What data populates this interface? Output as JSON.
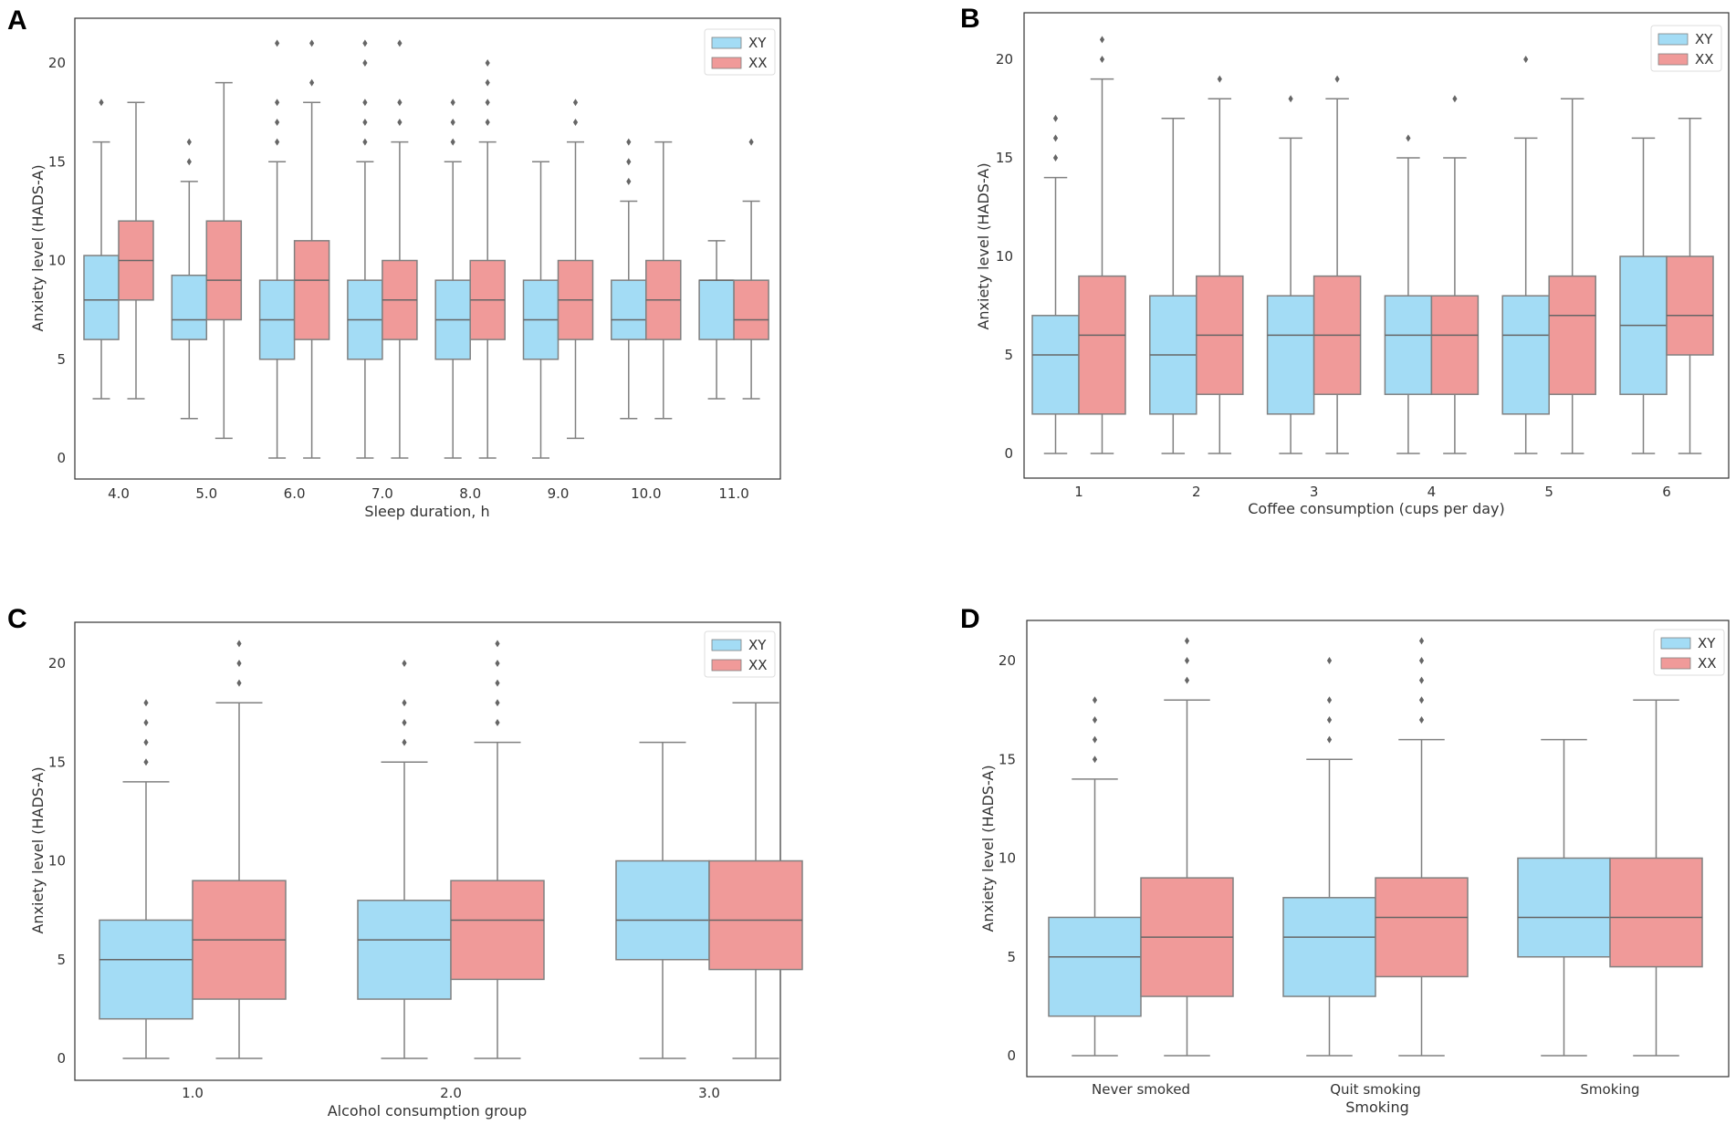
{
  "colors": {
    "XY": "#a3dcf5",
    "XX": "#f09a99",
    "line": "#808080"
  },
  "chart_data": [
    {
      "panel": "A",
      "type": "box",
      "xlabel": "Sleep duration, h",
      "ylabel": "Anxiety level (HADS-A)",
      "ylim": [
        -1,
        22
      ],
      "yticks": [
        0,
        5,
        10,
        15,
        20
      ],
      "legend": [
        "XY",
        "XX"
      ],
      "legend_position": "top-right",
      "categories": [
        "4.0",
        "5.0",
        "6.0",
        "7.0",
        "8.0",
        "9.0",
        "10.0",
        "11.0"
      ],
      "series": [
        {
          "name": "XY",
          "boxes": [
            {
              "wlo": 3,
              "q1": 6,
              "med": 8,
              "q3": 10.25,
              "whi": 16,
              "out": [
                18
              ]
            },
            {
              "wlo": 2,
              "q1": 6,
              "med": 7,
              "q3": 9.25,
              "whi": 14,
              "out": [
                15,
                16
              ]
            },
            {
              "wlo": 0,
              "q1": 5,
              "med": 7,
              "q3": 9,
              "whi": 15,
              "out": [
                16,
                17,
                18,
                21
              ]
            },
            {
              "wlo": 0,
              "q1": 5,
              "med": 7,
              "q3": 9,
              "whi": 15,
              "out": [
                16,
                17,
                18,
                20,
                21
              ]
            },
            {
              "wlo": 0,
              "q1": 5,
              "med": 7,
              "q3": 9,
              "whi": 15,
              "out": [
                16,
                17,
                18
              ]
            },
            {
              "wlo": 0,
              "q1": 5,
              "med": 7,
              "q3": 9,
              "whi": 15,
              "out": []
            },
            {
              "wlo": 2,
              "q1": 6,
              "med": 7,
              "q3": 9,
              "whi": 13,
              "out": [
                14,
                15,
                16
              ]
            },
            {
              "wlo": 3,
              "q1": 6,
              "med": 9,
              "q3": 9,
              "whi": 11,
              "out": []
            }
          ]
        },
        {
          "name": "XX",
          "boxes": [
            {
              "wlo": 3,
              "q1": 8,
              "med": 10,
              "q3": 12,
              "whi": 18,
              "out": []
            },
            {
              "wlo": 1,
              "q1": 7,
              "med": 9,
              "q3": 12,
              "whi": 19,
              "out": []
            },
            {
              "wlo": 0,
              "q1": 6,
              "med": 9,
              "q3": 11,
              "whi": 18,
              "out": [
                19,
                21
              ]
            },
            {
              "wlo": 0,
              "q1": 6,
              "med": 8,
              "q3": 10,
              "whi": 16,
              "out": [
                17,
                18,
                21
              ]
            },
            {
              "wlo": 0,
              "q1": 6,
              "med": 8,
              "q3": 10,
              "whi": 16,
              "out": [
                17,
                18,
                19,
                20
              ]
            },
            {
              "wlo": 1,
              "q1": 6,
              "med": 8,
              "q3": 10,
              "whi": 16,
              "out": [
                17,
                18
              ]
            },
            {
              "wlo": 2,
              "q1": 6,
              "med": 8,
              "q3": 10,
              "whi": 16,
              "out": []
            },
            {
              "wlo": 3,
              "q1": 6,
              "med": 7,
              "q3": 9,
              "whi": 13,
              "out": [
                16
              ]
            }
          ]
        }
      ]
    },
    {
      "panel": "B",
      "type": "box",
      "xlabel": "Coffee consumption (cups per day)",
      "ylabel": "Anxiety level (HADS-A)",
      "ylim": [
        -1,
        22
      ],
      "yticks": [
        0,
        5,
        10,
        15,
        20
      ],
      "legend": [
        "XY",
        "XX"
      ],
      "legend_position": "top-right",
      "categories": [
        "1",
        "2",
        "3",
        "4",
        "5",
        "6"
      ],
      "series": [
        {
          "name": "XY",
          "boxes": [
            {
              "wlo": 0,
              "q1": 2,
              "med": 5,
              "q3": 7,
              "whi": 14,
              "out": [
                15,
                16,
                17
              ]
            },
            {
              "wlo": 0,
              "q1": 2,
              "med": 5,
              "q3": 8,
              "whi": 17,
              "out": []
            },
            {
              "wlo": 0,
              "q1": 2,
              "med": 6,
              "q3": 8,
              "whi": 16,
              "out": [
                18
              ]
            },
            {
              "wlo": 0,
              "q1": 3,
              "med": 6,
              "q3": 8,
              "whi": 15,
              "out": [
                16
              ]
            },
            {
              "wlo": 0,
              "q1": 2,
              "med": 6,
              "q3": 8,
              "whi": 16,
              "out": [
                20
              ]
            },
            {
              "wlo": 0,
              "q1": 3,
              "med": 6.5,
              "q3": 10,
              "whi": 16,
              "out": []
            }
          ]
        },
        {
          "name": "XX",
          "boxes": [
            {
              "wlo": 0,
              "q1": 2,
              "med": 6,
              "q3": 9,
              "whi": 19,
              "out": [
                20,
                21
              ]
            },
            {
              "wlo": 0,
              "q1": 3,
              "med": 6,
              "q3": 9,
              "whi": 18,
              "out": [
                19
              ]
            },
            {
              "wlo": 0,
              "q1": 3,
              "med": 6,
              "q3": 9,
              "whi": 18,
              "out": [
                19
              ]
            },
            {
              "wlo": 0,
              "q1": 3,
              "med": 6,
              "q3": 8,
              "whi": 15,
              "out": [
                18
              ]
            },
            {
              "wlo": 0,
              "q1": 3,
              "med": 7,
              "q3": 9,
              "whi": 18,
              "out": []
            },
            {
              "wlo": 0,
              "q1": 5,
              "med": 7,
              "q3": 10,
              "whi": 17,
              "out": []
            }
          ]
        }
      ]
    },
    {
      "panel": "C",
      "type": "box",
      "xlabel": "Alcohol consumption group",
      "ylabel": "Anxiety level (HADS-A)",
      "ylim": [
        -1,
        22
      ],
      "yticks": [
        0,
        5,
        10,
        15,
        20
      ],
      "legend": [
        "XY",
        "XX"
      ],
      "legend_position": "top-right",
      "categories": [
        "1.0",
        "2.0",
        "3.0"
      ],
      "series": [
        {
          "name": "XY",
          "boxes": [
            {
              "wlo": 0,
              "q1": 2,
              "med": 5,
              "q3": 7,
              "whi": 14,
              "out": [
                15,
                16,
                17,
                18
              ]
            },
            {
              "wlo": 0,
              "q1": 3,
              "med": 6,
              "q3": 8,
              "whi": 15,
              "out": [
                16,
                17,
                18,
                20
              ]
            },
            {
              "wlo": 0,
              "q1": 5,
              "med": 7,
              "q3": 10,
              "whi": 16,
              "out": []
            }
          ]
        },
        {
          "name": "XX",
          "boxes": [
            {
              "wlo": 0,
              "q1": 3,
              "med": 6,
              "q3": 9,
              "whi": 18,
              "out": [
                19,
                20,
                21
              ]
            },
            {
              "wlo": 0,
              "q1": 4,
              "med": 7,
              "q3": 9,
              "whi": 16,
              "out": [
                17,
                18,
                19,
                20,
                21
              ]
            },
            {
              "wlo": 0,
              "q1": 4.5,
              "med": 7,
              "q3": 10,
              "whi": 18,
              "out": []
            }
          ]
        }
      ]
    },
    {
      "panel": "D",
      "type": "box",
      "xlabel": "Smoking",
      "ylabel": "Anxiety level (HADS-A)",
      "ylim": [
        -1,
        22
      ],
      "yticks": [
        0,
        5,
        10,
        15,
        20
      ],
      "legend": [
        "XY",
        "XX"
      ],
      "legend_position": "top-right",
      "categories": [
        "Never smoked",
        "Quit smoking",
        "Smoking"
      ],
      "series": [
        {
          "name": "XY",
          "boxes": [
            {
              "wlo": 0,
              "q1": 2,
              "med": 5,
              "q3": 7,
              "whi": 14,
              "out": [
                15,
                16,
                17,
                18
              ]
            },
            {
              "wlo": 0,
              "q1": 3,
              "med": 6,
              "q3": 8,
              "whi": 15,
              "out": [
                16,
                17,
                18,
                20
              ]
            },
            {
              "wlo": 0,
              "q1": 5,
              "med": 7,
              "q3": 10,
              "whi": 16,
              "out": []
            }
          ]
        },
        {
          "name": "XX",
          "boxes": [
            {
              "wlo": 0,
              "q1": 3,
              "med": 6,
              "q3": 9,
              "whi": 18,
              "out": [
                19,
                20,
                21
              ]
            },
            {
              "wlo": 0,
              "q1": 4,
              "med": 7,
              "q3": 9,
              "whi": 16,
              "out": [
                17,
                18,
                19,
                20,
                21
              ]
            },
            {
              "wlo": 0,
              "q1": 4.5,
              "med": 7,
              "q3": 10,
              "whi": 18,
              "out": []
            }
          ]
        }
      ]
    }
  ]
}
